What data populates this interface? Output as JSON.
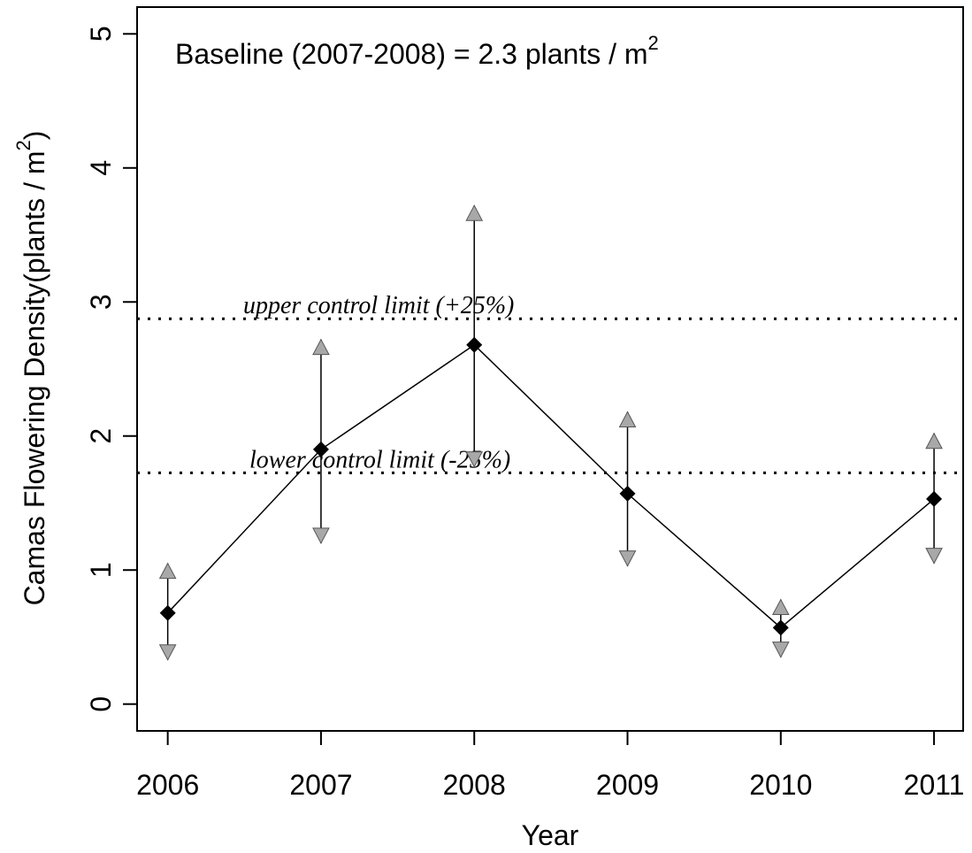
{
  "chart_data": {
    "type": "line",
    "annotation": {
      "text": "Baseline (2007-2008) = 2.3 plants / m",
      "superscript": "2"
    },
    "xlabel": "Year",
    "ylabel": {
      "text": "Camas Flowering Density(plants / m",
      "superscript": "2",
      "suffix": ")"
    },
    "x": [
      2006,
      2007,
      2008,
      2009,
      2010,
      2011
    ],
    "xlim": [
      2005.8,
      2011.19
    ],
    "xticks": [
      2006,
      2007,
      2008,
      2009,
      2010,
      2011
    ],
    "ylim": [
      -0.2,
      5.2
    ],
    "yticks": [
      0,
      1,
      2,
      3,
      4,
      5
    ],
    "series": [
      {
        "name": "Density",
        "color": "#000000",
        "values": [
          0.68,
          1.9,
          2.68,
          1.57,
          0.57,
          1.53
        ],
        "lower": [
          0.33,
          1.2,
          1.77,
          1.03,
          0.35,
          1.05
        ],
        "upper": [
          1.05,
          2.72,
          3.72,
          2.18,
          0.78,
          2.02
        ]
      }
    ],
    "reference_lines": [
      {
        "label": "upper control limit (+25%)",
        "value": 2.875
      },
      {
        "label": "lower control limit (-25%)",
        "value": 1.725
      }
    ]
  }
}
